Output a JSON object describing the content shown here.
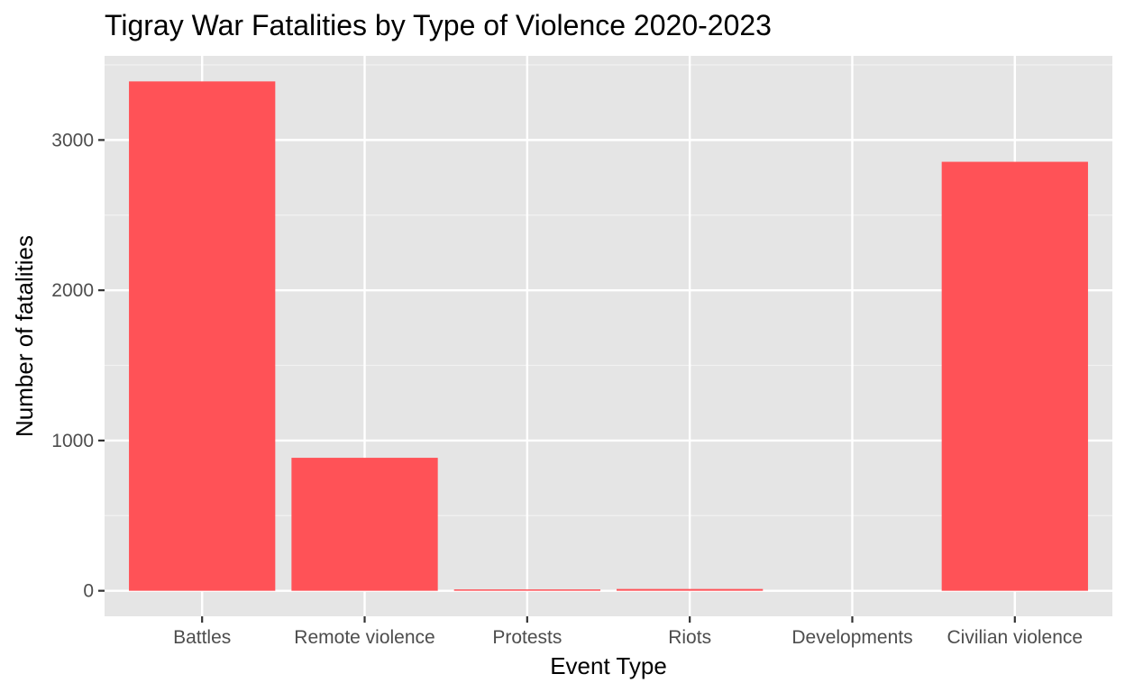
{
  "chart_data": {
    "type": "bar",
    "title": "Tigray War Fatalities by Type of Violence 2020-2023",
    "xlabel": "Event Type",
    "ylabel": "Number of fatalities",
    "categories": [
      "Battles",
      "Remote violence",
      "Protests",
      "Riots",
      "Developments",
      "Civilian violence"
    ],
    "values": [
      3390,
      885,
      5,
      12,
      0,
      2855
    ],
    "ylim": [
      -170,
      3560
    ],
    "y_ticks": [
      0,
      1000,
      2000,
      3000
    ],
    "y_tick_labels": [
      "0",
      "1000",
      "2000",
      "3000"
    ],
    "grid": true,
    "legend": "none",
    "colors": {
      "bar": "#FF5257",
      "panel_background": "#E5E5E5",
      "grid_major": "#FFFFFF",
      "grid_minor": "#F2F2F2",
      "tick_text": "#4D4D4D",
      "text": "#000000"
    }
  }
}
